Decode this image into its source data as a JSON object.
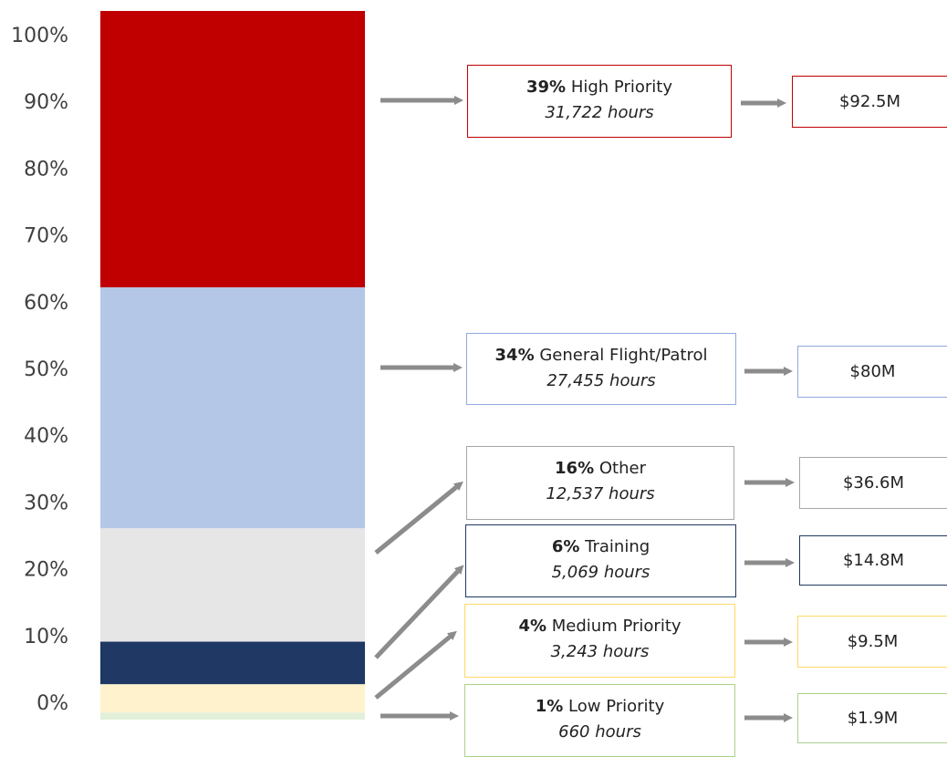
{
  "chart_data": {
    "type": "bar",
    "stacked": true,
    "ylim": [
      0,
      100
    ],
    "y_ticks": [
      "0%",
      "10%",
      "20%",
      "30%",
      "40%",
      "50%",
      "60%",
      "70%",
      "80%",
      "90%",
      "100%"
    ],
    "segments": [
      {
        "key": "low",
        "percent": 1,
        "pct_label": "1%",
        "name": "Low Priority",
        "hours": "660 hours",
        "cost": "$1.9M",
        "fill": "#e2efd9",
        "border": "#a9d18e"
      },
      {
        "key": "medium",
        "percent": 4,
        "pct_label": "4%",
        "name": "Medium Priority",
        "hours": "3,243 hours",
        "cost": "$9.5M",
        "fill": "#fff2cc",
        "border": "#ffd966"
      },
      {
        "key": "training",
        "percent": 6,
        "pct_label": "6%",
        "name": "Training",
        "hours": "5,069 hours",
        "cost": "$14.8M",
        "fill": "#1f3864",
        "border": "#1f3864"
      },
      {
        "key": "other",
        "percent": 16,
        "pct_label": "16%",
        "name": "Other",
        "hours": "12,537 hours",
        "cost": "$36.6M",
        "fill": "#e7e6e6",
        "border": "#a6a6a6"
      },
      {
        "key": "general",
        "percent": 34,
        "pct_label": "34%",
        "name": "General Flight/Patrol",
        "hours": "27,455 hours",
        "cost": "$80M",
        "fill": "#b4c7e7",
        "border": "#8faadc"
      },
      {
        "key": "high",
        "percent": 39,
        "pct_label": "39%",
        "name": "High Priority",
        "hours": "31,722 hours",
        "cost": "$92.5M",
        "fill": "#c00000",
        "border": "#c00000"
      }
    ],
    "arrow_color": "#8c8c8c"
  }
}
